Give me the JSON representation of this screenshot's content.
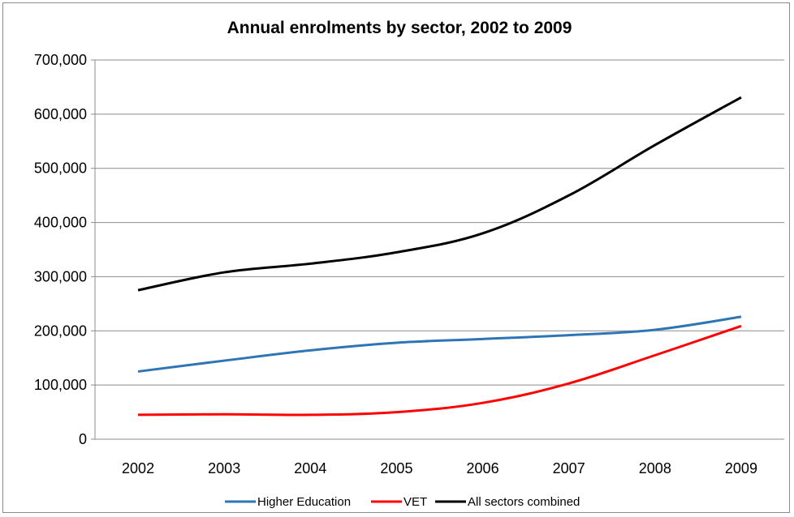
{
  "chart_data": {
    "type": "line",
    "title": "Annual enrolments by sector, 2002 to 2009",
    "xlabel": "",
    "ylabel": "",
    "categories": [
      "2002",
      "2003",
      "2004",
      "2005",
      "2006",
      "2007",
      "2008",
      "2009"
    ],
    "ylim": [
      0,
      700000
    ],
    "yticks": [
      "0",
      "100,000",
      "200,000",
      "300,000",
      "400,000",
      "500,000",
      "600,000",
      "700,000"
    ],
    "grid": true,
    "legend_position": "bottom",
    "series": [
      {
        "name": "Higher Education",
        "color": "#2e75b6",
        "values": [
          125000,
          145000,
          164000,
          178000,
          185000,
          192000,
          202000,
          226000
        ]
      },
      {
        "name": "VET",
        "color": "#ff0000",
        "values": [
          45000,
          46000,
          45000,
          50000,
          67000,
          103000,
          155000,
          209000
        ]
      },
      {
        "name": "All sectors combined",
        "color": "#000000",
        "values": [
          275000,
          308000,
          324000,
          345000,
          380000,
          450000,
          543000,
          631000
        ]
      }
    ]
  }
}
